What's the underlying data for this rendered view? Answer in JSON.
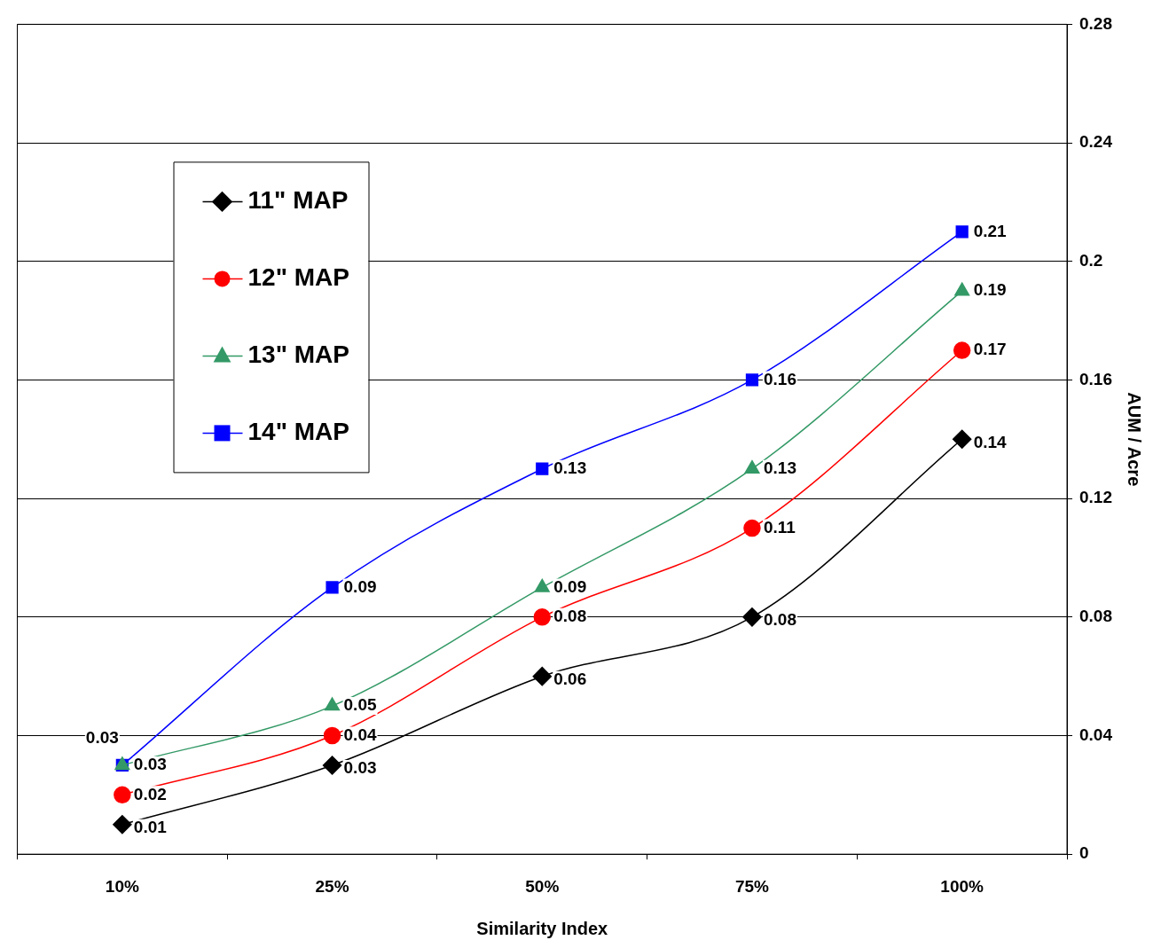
{
  "chart_data": {
    "type": "line",
    "xlabel": "Similarity Index",
    "ylabel": "AUM / Acre",
    "categories": [
      "10%",
      "25%",
      "50%",
      "75%",
      "100%"
    ],
    "series": [
      {
        "name": "11\" MAP",
        "color": "#000000",
        "marker": "diamond",
        "values": [
          0.01,
          0.03,
          0.06,
          0.08,
          0.14
        ]
      },
      {
        "name": "12\" MAP",
        "color": "#ff0000",
        "marker": "circle",
        "values": [
          0.02,
          0.04,
          0.08,
          0.11,
          0.17
        ]
      },
      {
        "name": "13\" MAP",
        "color": "#339966",
        "marker": "triangle",
        "values": [
          0.03,
          0.05,
          0.09,
          0.13,
          0.19
        ]
      },
      {
        "name": "14\" MAP",
        "color": "#0000ff",
        "marker": "square",
        "values": [
          0.03,
          0.09,
          0.13,
          0.16,
          0.21
        ]
      }
    ],
    "ylim": [
      0,
      0.28
    ],
    "yticks": [
      0,
      0.04,
      0.08,
      0.12,
      0.16,
      0.2,
      0.24,
      0.28
    ],
    "grid": "y",
    "legend": "top left",
    "data_labels": true,
    "line_style": "solid"
  }
}
